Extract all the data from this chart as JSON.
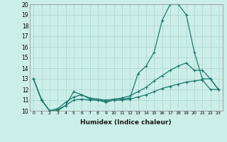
{
  "xlabel": "Humidex (Indice chaleur)",
  "bg_color": "#cceee8",
  "line_color": "#1a7a6e",
  "grid_color": "#aad4ce",
  "xlim": [
    -0.5,
    23.5
  ],
  "ylim": [
    10,
    20
  ],
  "xticks": [
    0,
    1,
    2,
    3,
    4,
    5,
    6,
    7,
    8,
    9,
    10,
    11,
    12,
    13,
    14,
    15,
    16,
    17,
    18,
    19,
    20,
    21,
    22,
    23
  ],
  "yticks": [
    10,
    11,
    12,
    13,
    14,
    15,
    16,
    17,
    18,
    19,
    20
  ],
  "series": [
    {
      "x": [
        0,
        1,
        2,
        3,
        4,
        5,
        6,
        7,
        8,
        9,
        10,
        11,
        12,
        13,
        14,
        15,
        16,
        17,
        18,
        19,
        20,
        21,
        22,
        23
      ],
      "y": [
        13,
        11,
        10,
        10,
        10.5,
        11.8,
        11.5,
        11.1,
        11.0,
        10.8,
        11.0,
        11.1,
        11.2,
        13.5,
        14.2,
        15.5,
        18.5,
        20.0,
        20.0,
        19.0,
        15.5,
        13.0,
        13.0,
        12.0
      ]
    },
    {
      "x": [
        0,
        1,
        2,
        3,
        4,
        5,
        6,
        7,
        8,
        9,
        10,
        11,
        12,
        13,
        14,
        15,
        16,
        17,
        18,
        19,
        20,
        21,
        22,
        23
      ],
      "y": [
        13,
        11,
        10,
        10.2,
        10.8,
        11.3,
        11.5,
        11.2,
        11.1,
        11.0,
        11.1,
        11.2,
        11.4,
        11.8,
        12.2,
        12.8,
        13.3,
        13.8,
        14.2,
        14.5,
        13.8,
        13.8,
        13.0,
        12.0
      ]
    },
    {
      "x": [
        0,
        1,
        2,
        3,
        4,
        5,
        6,
        7,
        8,
        9,
        10,
        11,
        12,
        13,
        14,
        15,
        16,
        17,
        18,
        19,
        20,
        21,
        22,
        23
      ],
      "y": [
        13,
        11,
        10,
        10.1,
        10.5,
        11.0,
        11.1,
        11.0,
        11.0,
        10.9,
        11.0,
        11.0,
        11.1,
        11.3,
        11.5,
        11.8,
        12.1,
        12.3,
        12.5,
        12.7,
        12.8,
        12.9,
        12.0,
        12.0
      ]
    }
  ]
}
